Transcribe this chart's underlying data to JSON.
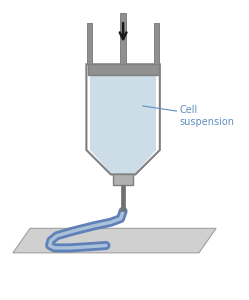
{
  "bg_color": "#ffffff",
  "platform_color": "#d0d0d0",
  "platform_edge_color": "#a0a0a0",
  "syringe_fill_color": "#ccdde8",
  "syringe_outline_color": "#808080",
  "piston_color": "#909090",
  "rod_color": "#909090",
  "nozzle_color": "#b0b0b0",
  "needle_color": "#707070",
  "extrusion_color": "#6080b8",
  "extrusion_highlight": "#a8c0d8",
  "arrow_color": "#1a1a1a",
  "label_color": "#6090c0",
  "label_text": "Cell\nsuspension",
  "label_fontsize": 7.0,
  "figsize": [
    2.49,
    3.0
  ],
  "dpi": 100
}
